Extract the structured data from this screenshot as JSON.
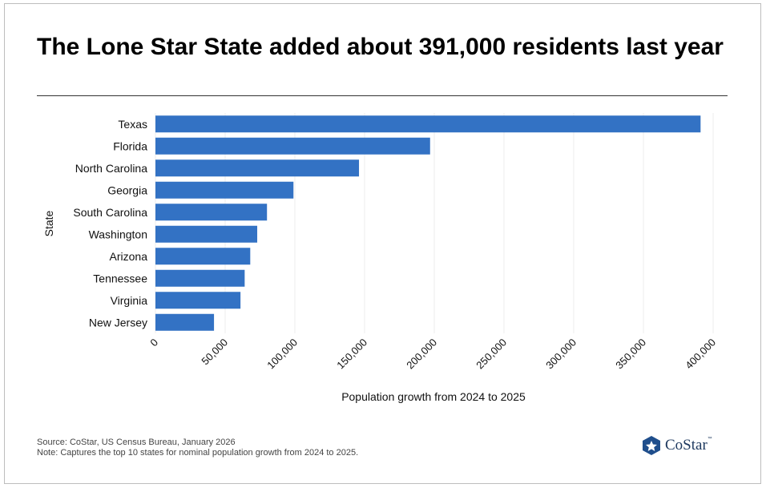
{
  "header": {
    "title": "The Lone Star State added about 391,000 residents last year"
  },
  "chart_data": {
    "type": "bar",
    "orientation": "horizontal",
    "categories": [
      "Texas",
      "Florida",
      "North Carolina",
      "Georgia",
      "South Carolina",
      "Washington",
      "Arizona",
      "Tennessee",
      "Virginia",
      "New Jersey"
    ],
    "values": [
      391000,
      197000,
      146000,
      99000,
      80000,
      73000,
      68000,
      64000,
      61000,
      42000
    ],
    "xlabel": "Population growth from 2024 to 2025",
    "ylabel": "State",
    "xlim": [
      0,
      400000
    ],
    "xticks": [
      0,
      50000,
      100000,
      150000,
      200000,
      250000,
      300000,
      350000,
      400000
    ],
    "xtick_labels": [
      "0",
      "50,000",
      "100,000",
      "150,000",
      "200,000",
      "250,000",
      "300,000",
      "350,000",
      "400,000"
    ],
    "grid": "vertical",
    "bar_color": "#3372c4"
  },
  "footer": {
    "source": "Source: CoStar, US Census Bureau, January 2026",
    "note": "Note: Captures the top 10 states for nominal population growth from 2024 to 2025."
  },
  "logo": {
    "text": "CoStar",
    "tm": "™"
  }
}
